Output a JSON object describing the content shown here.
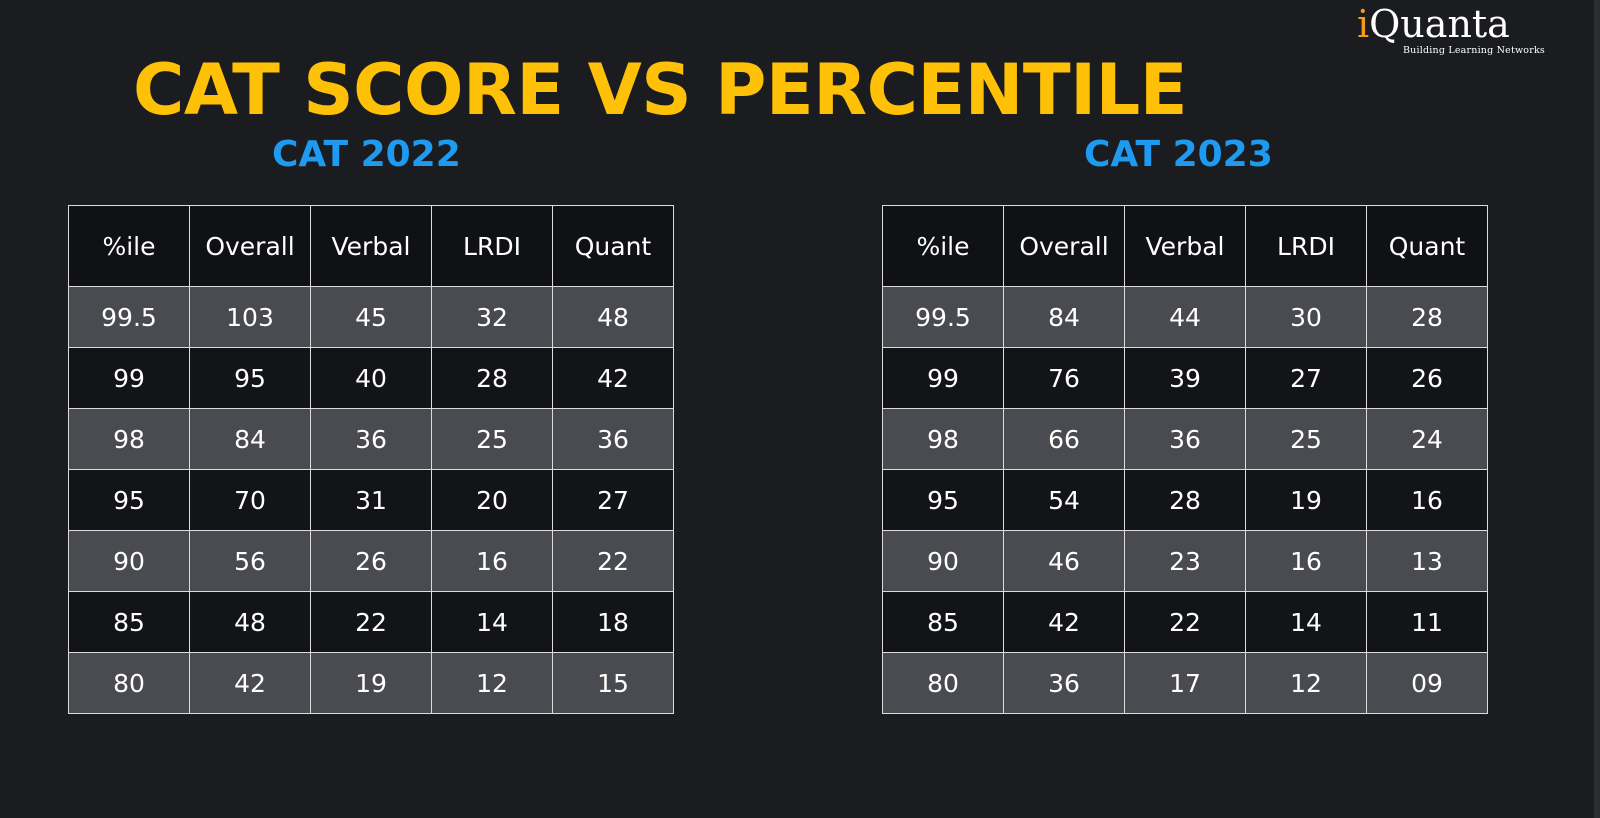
{
  "logo": {
    "brand_i": "i",
    "brand_rest": "Quanta",
    "tagline": "Building Learning Networks",
    "colors": {
      "i": "#f39a1c",
      "text": "#ffffff"
    }
  },
  "title": "CAT SCORE VS PERCENTILE",
  "colors": {
    "title": "#ffc107",
    "subtitle": "#1e9bf0",
    "background": "#1b1c20",
    "row_light": "#4a4b50",
    "row_dark": "#131418"
  },
  "tables": [
    {
      "label": "CAT 2022",
      "headers": [
        "%ile",
        "Overall",
        "Verbal",
        "LRDI",
        "Quant"
      ],
      "rows": [
        [
          "99.5",
          "103",
          "45",
          "32",
          "48"
        ],
        [
          "99",
          "95",
          "40",
          "28",
          "42"
        ],
        [
          "98",
          "84",
          "36",
          "25",
          "36"
        ],
        [
          "95",
          "70",
          "31",
          "20",
          "27"
        ],
        [
          "90",
          "56",
          "26",
          "16",
          "22"
        ],
        [
          "85",
          "48",
          "22",
          "14",
          "18"
        ],
        [
          "80",
          "42",
          "19",
          "12",
          "15"
        ]
      ]
    },
    {
      "label": "CAT 2023",
      "headers": [
        "%ile",
        "Overall",
        "Verbal",
        "LRDI",
        "Quant"
      ],
      "rows": [
        [
          "99.5",
          "84",
          "44",
          "30",
          "28"
        ],
        [
          "99",
          "76",
          "39",
          "27",
          "26"
        ],
        [
          "98",
          "66",
          "36",
          "25",
          "24"
        ],
        [
          "95",
          "54",
          "28",
          "19",
          "16"
        ],
        [
          "90",
          "46",
          "23",
          "16",
          "13"
        ],
        [
          "85",
          "42",
          "22",
          "14",
          "11"
        ],
        [
          "80",
          "36",
          "17",
          "12",
          "09"
        ]
      ]
    }
  ]
}
